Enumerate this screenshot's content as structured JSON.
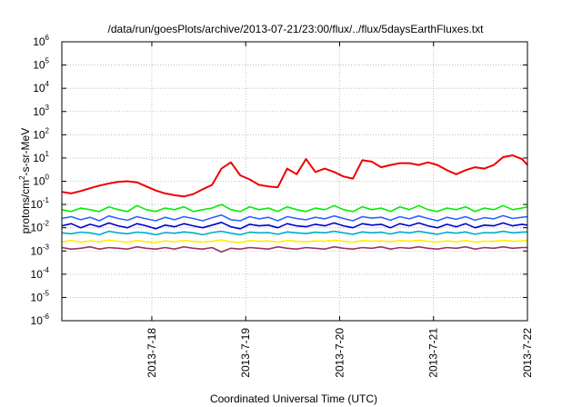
{
  "chart_data": {
    "type": "line",
    "title": "/data/run/goesPlots/archive/2013-07-21/23:00/flux/../flux/5daysEarthFluxes.txt",
    "xlabel": "Coordinated Universal Time (UTC)",
    "ylabel": {
      "main": "protons/cm",
      "sup": "2",
      "rest": "-s-sr-MeV"
    },
    "yscale": "log",
    "ylim": [
      -6,
      6
    ],
    "y_ticks": [
      {
        "exp": "-6",
        "value": -6
      },
      {
        "exp": "-5",
        "value": -5
      },
      {
        "exp": "-4",
        "value": -4
      },
      {
        "exp": "-3",
        "value": -3
      },
      {
        "exp": "-2",
        "value": -2
      },
      {
        "exp": "-1",
        "value": -1
      },
      {
        "exp": "0",
        "value": 0
      },
      {
        "exp": "1",
        "value": 1
      },
      {
        "exp": "2",
        "value": 2
      },
      {
        "exp": "3",
        "value": 3
      },
      {
        "exp": "4",
        "value": 4
      },
      {
        "exp": "5",
        "value": 5
      },
      {
        "exp": "6",
        "value": 6
      }
    ],
    "y_tick_base": "10",
    "xlim": [
      "2013-07-17 01:00",
      "2013-07-22 00:00"
    ],
    "x_ticks": [
      "2013-7-18",
      "2013-7-19",
      "2013-7-20",
      "2013-7-21",
      "2013-7-22"
    ],
    "grid": true,
    "x_days": [
      0.0,
      0.1,
      0.2,
      0.3,
      0.4,
      0.5,
      0.6,
      0.7,
      0.8,
      0.9,
      1.0,
      1.1,
      1.2,
      1.3,
      1.4,
      1.5,
      1.6,
      1.7,
      1.8,
      1.9,
      2.0,
      2.1,
      2.2,
      2.3,
      2.4,
      2.5,
      2.6,
      2.7,
      2.8,
      2.9,
      3.0,
      3.1,
      3.2,
      3.3,
      3.4,
      3.5,
      3.6,
      3.7,
      3.8,
      3.9,
      4.0,
      4.1,
      4.2,
      4.3,
      4.4,
      4.5,
      4.6,
      4.7,
      4.8,
      4.9,
      4.958
    ],
    "series": [
      {
        "color": "#ee0000",
        "values": [
          0.35,
          0.3,
          0.38,
          0.5,
          0.65,
          0.8,
          0.95,
          1.0,
          0.9,
          0.6,
          0.4,
          0.3,
          0.25,
          0.22,
          0.28,
          0.45,
          0.7,
          3.5,
          6.5,
          1.8,
          1.2,
          0.7,
          0.6,
          0.55,
          3.5,
          2.0,
          9.0,
          2.5,
          3.5,
          2.5,
          1.6,
          1.3,
          8.0,
          7.0,
          4.0,
          5.0,
          6.0,
          6.0,
          5.0,
          6.5,
          5.0,
          3.0,
          2.0,
          3.0,
          4.0,
          3.5,
          5.0,
          11.0,
          13.0,
          9.0,
          5.0
        ]
      },
      {
        "color": "#00ee00",
        "values": [
          0.06,
          0.05,
          0.07,
          0.06,
          0.05,
          0.08,
          0.06,
          0.05,
          0.09,
          0.06,
          0.05,
          0.07,
          0.06,
          0.08,
          0.05,
          0.06,
          0.07,
          0.1,
          0.06,
          0.05,
          0.08,
          0.06,
          0.07,
          0.05,
          0.08,
          0.06,
          0.05,
          0.07,
          0.06,
          0.09,
          0.06,
          0.05,
          0.08,
          0.06,
          0.07,
          0.05,
          0.08,
          0.06,
          0.09,
          0.06,
          0.05,
          0.07,
          0.06,
          0.08,
          0.05,
          0.07,
          0.06,
          0.09,
          0.06,
          0.07,
          0.08
        ]
      },
      {
        "color": "#3060ff",
        "values": [
          0.025,
          0.03,
          0.022,
          0.028,
          0.02,
          0.032,
          0.025,
          0.021,
          0.03,
          0.024,
          0.02,
          0.028,
          0.022,
          0.03,
          0.025,
          0.02,
          0.027,
          0.035,
          0.022,
          0.02,
          0.03,
          0.024,
          0.028,
          0.02,
          0.03,
          0.025,
          0.022,
          0.028,
          0.024,
          0.032,
          0.025,
          0.02,
          0.03,
          0.026,
          0.028,
          0.021,
          0.03,
          0.024,
          0.032,
          0.025,
          0.02,
          0.028,
          0.023,
          0.03,
          0.021,
          0.027,
          0.024,
          0.033,
          0.025,
          0.028,
          0.03
        ]
      },
      {
        "color": "#0000cc",
        "values": [
          0.012,
          0.015,
          0.01,
          0.014,
          0.011,
          0.016,
          0.012,
          0.01,
          0.015,
          0.012,
          0.009,
          0.013,
          0.011,
          0.015,
          0.012,
          0.01,
          0.013,
          0.017,
          0.011,
          0.009,
          0.014,
          0.012,
          0.013,
          0.01,
          0.015,
          0.012,
          0.011,
          0.014,
          0.012,
          0.016,
          0.012,
          0.01,
          0.015,
          0.013,
          0.014,
          0.01,
          0.015,
          0.012,
          0.016,
          0.012,
          0.01,
          0.014,
          0.011,
          0.015,
          0.01,
          0.013,
          0.012,
          0.016,
          0.012,
          0.014,
          0.013
        ]
      },
      {
        "color": "#00aacc",
        "values": [
          0.006,
          0.0055,
          0.0065,
          0.006,
          0.005,
          0.007,
          0.006,
          0.0055,
          0.0065,
          0.006,
          0.005,
          0.0062,
          0.0058,
          0.0066,
          0.006,
          0.005,
          0.0062,
          0.007,
          0.0058,
          0.005,
          0.0064,
          0.006,
          0.0062,
          0.0052,
          0.0066,
          0.006,
          0.0056,
          0.0064,
          0.006,
          0.007,
          0.006,
          0.0052,
          0.0066,
          0.006,
          0.0064,
          0.0054,
          0.0066,
          0.006,
          0.007,
          0.006,
          0.0052,
          0.0064,
          0.0058,
          0.0066,
          0.0052,
          0.0062,
          0.006,
          0.007,
          0.006,
          0.0064,
          0.0066
        ]
      },
      {
        "color": "#ffee00",
        "values": [
          0.0025,
          0.0028,
          0.0024,
          0.0027,
          0.0025,
          0.0029,
          0.0026,
          0.0024,
          0.0028,
          0.0025,
          0.0023,
          0.0027,
          0.0025,
          0.0028,
          0.0026,
          0.0024,
          0.0026,
          0.003,
          0.0025,
          0.0023,
          0.0028,
          0.0026,
          0.0027,
          0.0024,
          0.0028,
          0.0026,
          0.0025,
          0.0027,
          0.0026,
          0.0029,
          0.0026,
          0.0024,
          0.0028,
          0.0026,
          0.0027,
          0.0025,
          0.0028,
          0.0026,
          0.0029,
          0.0026,
          0.0024,
          0.0027,
          0.0025,
          0.0028,
          0.0024,
          0.0026,
          0.0026,
          0.0029,
          0.0026,
          0.0027,
          0.0028
        ]
      },
      {
        "color": "#993366",
        "values": [
          0.0014,
          0.0012,
          0.0013,
          0.0015,
          0.0012,
          0.0014,
          0.0013,
          0.0012,
          0.0015,
          0.0013,
          0.0012,
          0.0014,
          0.0012,
          0.0015,
          0.0013,
          0.0012,
          0.0014,
          0.0009,
          0.0013,
          0.0012,
          0.0014,
          0.0013,
          0.0012,
          0.0015,
          0.0013,
          0.0012,
          0.0014,
          0.0013,
          0.0012,
          0.0015,
          0.0013,
          0.0012,
          0.0014,
          0.0013,
          0.0015,
          0.0012,
          0.0014,
          0.0013,
          0.0015,
          0.0013,
          0.0012,
          0.0014,
          0.0013,
          0.0015,
          0.0012,
          0.0014,
          0.0013,
          0.0015,
          0.0013,
          0.0014,
          0.0014
        ]
      }
    ]
  }
}
